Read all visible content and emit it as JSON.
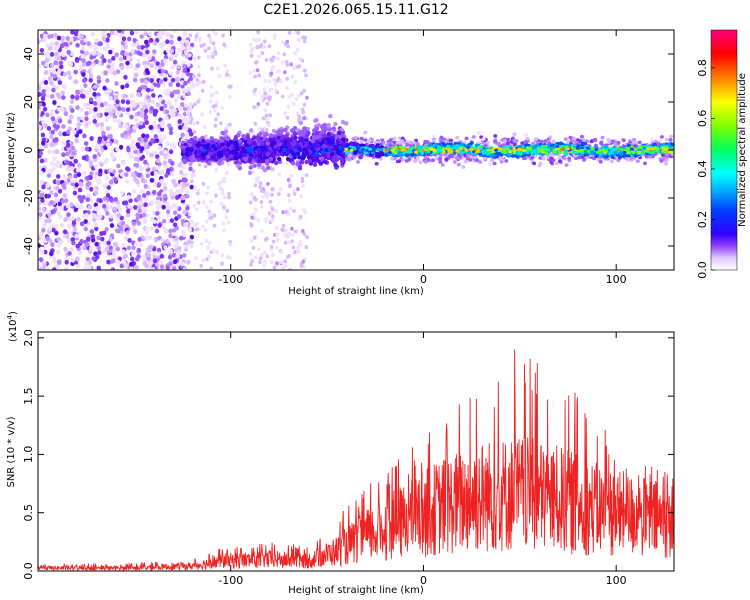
{
  "title": "C2E1.2026.065.15.11.G12",
  "chart_data": [
    {
      "type": "heatmap",
      "name": "spectrogram",
      "xlabel": "Height of straight line (km)",
      "ylabel": "Frequency (Hz)",
      "xlim": [
        -200,
        130
      ],
      "ylim": [
        -50,
        50
      ],
      "xticks": [
        -100,
        0,
        100
      ],
      "yticks": [
        -40,
        -20,
        0,
        20,
        40
      ],
      "colorbar": {
        "label": "Normalized spectral amplitude",
        "range": [
          0,
          0.95
        ],
        "ticks": [
          0.0,
          0.2,
          0.4,
          0.6,
          0.8
        ],
        "colors": [
          "#ffffff",
          "#e8d0ff",
          "#9a4dff",
          "#3a00e0",
          "#0000ff",
          "#0080ff",
          "#00ffff",
          "#00ff40",
          "#80ff00",
          "#ffff00",
          "#ff8000",
          "#ff0000",
          "#ff0080"
        ]
      },
      "description_points": {
        "signal_band_center_hz": 0,
        "signal_start_km": -125,
        "strong_band_start_km": -20,
        "scatter_region_km": [
          -200,
          -120
        ]
      }
    },
    {
      "type": "line",
      "name": "snr",
      "xlabel": "Height of straight line (km)",
      "ylabel": "SNR (10 * v/v)",
      "scale_note": "(x10",
      "scale_exp": "4",
      "xlim": [
        -200,
        130
      ],
      "ylim": [
        0,
        2.05
      ],
      "xticks": [
        -100,
        0,
        100
      ],
      "yticks": [
        0.0,
        0.5,
        1.0,
        1.5,
        2.0
      ],
      "color": "#ee2222",
      "envelope": {
        "x": [
          -200,
          -150,
          -120,
          -105,
          -80,
          -60,
          -45,
          -30,
          -10,
          10,
          30,
          50,
          70,
          90,
          110,
          130
        ],
        "mean": [
          0.03,
          0.03,
          0.05,
          0.1,
          0.12,
          0.1,
          0.2,
          0.35,
          0.5,
          0.65,
          0.75,
          0.78,
          0.72,
          0.62,
          0.55,
          0.5
        ],
        "peak": [
          0.06,
          0.07,
          0.1,
          0.2,
          0.25,
          0.22,
          0.45,
          0.75,
          1.0,
          1.3,
          1.7,
          2.0,
          1.8,
          1.3,
          1.0,
          0.85
        ]
      }
    }
  ]
}
